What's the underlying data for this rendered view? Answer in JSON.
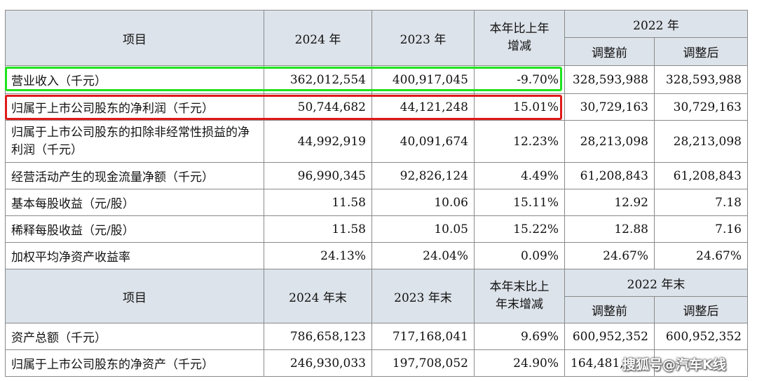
{
  "header1": {
    "item": "项目",
    "y2024": "2024 年",
    "y2023": "2023 年",
    "change": "本年比上年增减",
    "y2022": "2022 年",
    "before": "调整前",
    "after": "调整后"
  },
  "rows1": [
    {
      "label": "营业收入（千元）",
      "v2024": "362,012,554",
      "v2023": "400,917,045",
      "change": "-9.70%",
      "before": "328,593,988",
      "after": "328,593,988"
    },
    {
      "label": "归属于上市公司股东的净利润（千元）",
      "v2024": "50,744,682",
      "v2023": "44,121,248",
      "change": "15.01%",
      "before": "30,729,163",
      "after": "30,729,163"
    },
    {
      "label": "归属于上市公司股东的扣除非经常性损益的净利润（千元）",
      "v2024": "44,992,919",
      "v2023": "40,091,674",
      "change": "12.23%",
      "before": "28,213,098",
      "after": "28,213,098"
    },
    {
      "label": "经营活动产生的现金流量净额（千元）",
      "v2024": "96,990,345",
      "v2023": "92,826,124",
      "change": "4.49%",
      "before": "61,208,843",
      "after": "61,208,843"
    },
    {
      "label": "基本每股收益（元/股）",
      "v2024": "11.58",
      "v2023": "10.06",
      "change": "15.11%",
      "before": "12.92",
      "after": "7.18"
    },
    {
      "label": "稀释每股收益（元/股）",
      "v2024": "11.58",
      "v2023": "10.05",
      "change": "15.22%",
      "before": "12.88",
      "after": "7.16"
    },
    {
      "label": "加权平均净资产收益率",
      "v2024": "24.13%",
      "v2023": "24.04%",
      "change": "0.09%",
      "before": "24.67%",
      "after": "24.67%"
    }
  ],
  "header2": {
    "item": "项目",
    "y2024": "2024 年末",
    "y2023": "2023 年末",
    "change": "本年末比上年末增减",
    "y2022": "2022 年末",
    "before": "调整前",
    "after": "调整后"
  },
  "rows2": [
    {
      "label": "资产总额（千元）",
      "v2024": "786,658,123",
      "v2023": "717,168,041",
      "change": "9.69%",
      "before": "600,952,352",
      "after": "600,952,352"
    },
    {
      "label": "归属于上市公司股东的净资产（千元）",
      "v2024": "246,930,033",
      "v2023": "197,708,052",
      "change": "24.90%",
      "before": "164,481,",
      "after": ""
    }
  ],
  "watermark": "搜狐号@汽车K线"
}
